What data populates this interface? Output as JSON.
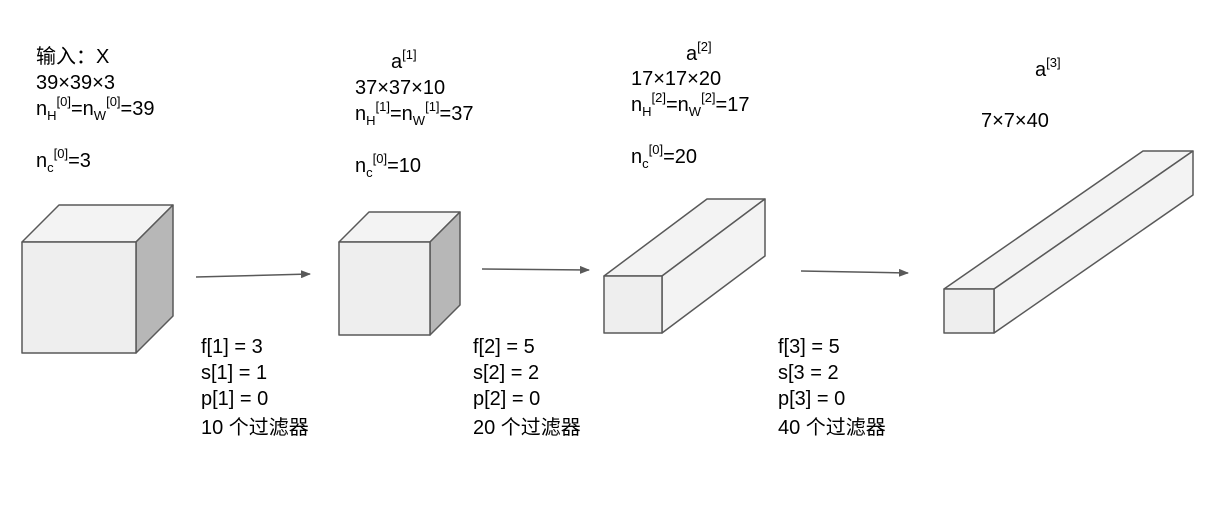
{
  "colors": {
    "face_front": "#eeeeee",
    "face_top": "#f3f3f3",
    "face_side": "#b7b7b7",
    "stroke": "#595959",
    "arrow": "#595959"
  },
  "layers": [
    {
      "title": "输入：X",
      "dims": "39×39×3",
      "nh": {
        "n": "n",
        "h_sub": "H",
        "h_sup": "[0]",
        "eq": "=n",
        "w_sub": "W",
        "w_sup": "[0]",
        "val": "=39"
      },
      "nc": {
        "n": "n",
        "sub": "c",
        "sup": "[0]",
        "val": "=3"
      }
    },
    {
      "title_base": "a",
      "title_sup": "[1]",
      "dims": "37×37×10",
      "nh": {
        "n": "n",
        "h_sub": "H",
        "h_sup": "[1]",
        "eq": "=n",
        "w_sub": "W",
        "w_sup": "[1]",
        "val": "=37"
      },
      "nc": {
        "n": "n",
        "sub": "c",
        "sup": "[0]",
        "val": "=10"
      }
    },
    {
      "title_base": "a",
      "title_sup": "[2]",
      "dims": "17×17×20",
      "nh": {
        "n": "n",
        "h_sub": "H",
        "h_sup": "[2]",
        "eq": "=n",
        "w_sub": "W",
        "w_sup": "[2]",
        "val": "=17"
      },
      "nc": {
        "n": "n",
        "sub": "c",
        "sup": "[0]",
        "val": "=20"
      }
    },
    {
      "title_base": "a",
      "title_sup": "[3]",
      "dims": "7×7×40"
    }
  ],
  "convs": [
    {
      "f": "f[1] = 3",
      "s": "s[1] = 1",
      "p": "p[1] = 0",
      "filters": "10 个过滤器"
    },
    {
      "f": "f[2] = 5",
      "s": "s[2] = 2",
      "p": "p[2] = 0",
      "filters": "20 个过滤器"
    },
    {
      "f": "f[3] = 5",
      "s": "s[3 = 2",
      "p": "p[3] = 0",
      "filters": "40 个过滤器"
    }
  ]
}
